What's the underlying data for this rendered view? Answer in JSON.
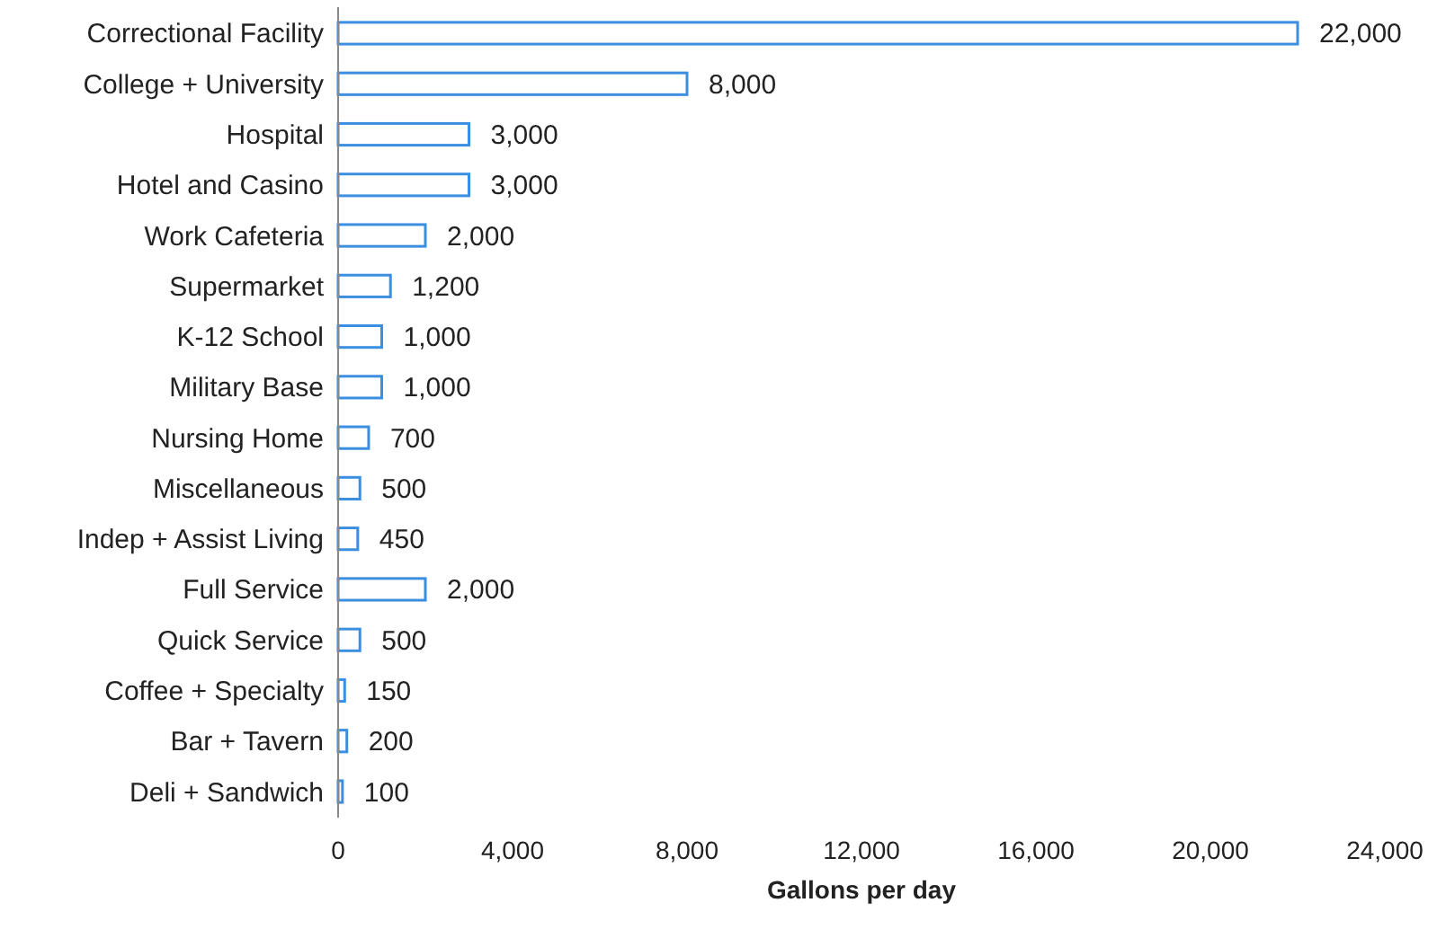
{
  "chart_data": {
    "type": "bar",
    "orientation": "horizontal",
    "xlabel": "Gallons per day",
    "categories": [
      "Correctional Facility",
      "College + University",
      "Hospital",
      "Hotel and Casino",
      "Work Cafeteria",
      "Supermarket",
      "K-12 School",
      "Military Base",
      "Nursing Home",
      "Miscellaneous",
      "Indep + Assist Living",
      "Full Service",
      "Quick Service",
      "Coffee + Specialty",
      "Bar + Tavern",
      "Deli + Sandwich"
    ],
    "values": [
      22000,
      8000,
      3000,
      3000,
      2000,
      1200,
      1000,
      1000,
      700,
      500,
      450,
      2000,
      500,
      150,
      200,
      100
    ],
    "value_labels": [
      "22,000",
      "8,000",
      "3,000",
      "3,000",
      "2,000",
      "1,200",
      "1,000",
      "1,000",
      "700",
      "500",
      "450",
      "2,000",
      "500",
      "150",
      "200",
      "100"
    ],
    "color": "#3b8ee0",
    "xlim": [
      0,
      24000
    ],
    "xticks": [
      {
        "value": 0,
        "label": "0"
      },
      {
        "value": 4000,
        "label": "4,000"
      },
      {
        "value": 8000,
        "label": "8,000"
      },
      {
        "value": 12000,
        "label": "12,000"
      },
      {
        "value": 16000,
        "label": "16,000"
      },
      {
        "value": 20000,
        "label": "20,000"
      },
      {
        "value": 24000,
        "label": "24,000"
      }
    ],
    "grid": false
  }
}
